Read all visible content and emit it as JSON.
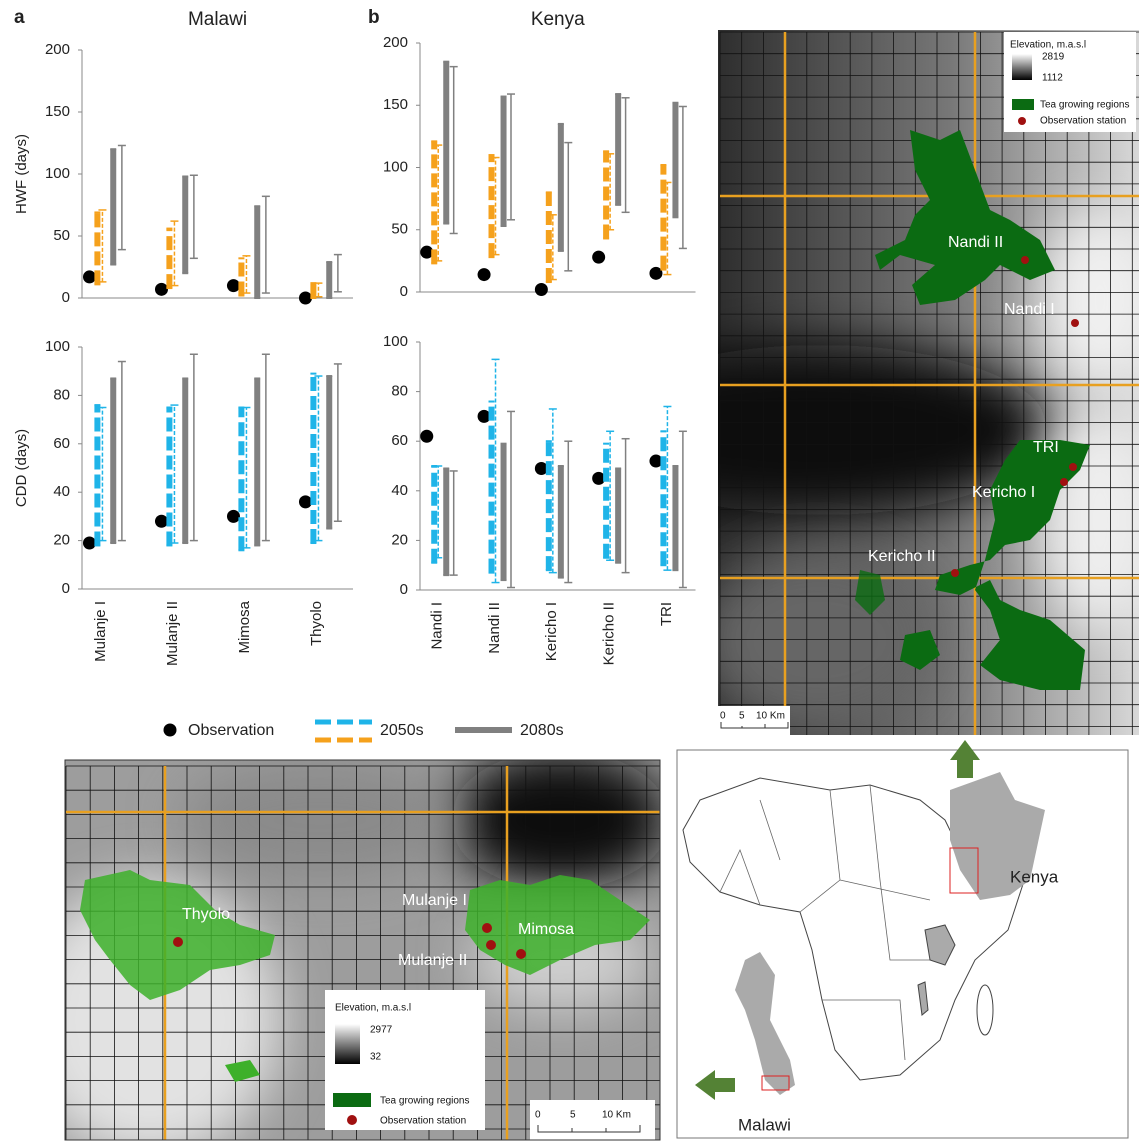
{
  "chart_data": [
    {
      "type": "range",
      "panel": "a",
      "title": "Malawi",
      "y_label": "HWF (days)",
      "ylim": [
        0,
        200
      ],
      "yticks": [
        0,
        50,
        100,
        150,
        200
      ],
      "series": [
        {
          "name": "Observation",
          "color": "#000000",
          "values": [
            17,
            7,
            10,
            0
          ]
        },
        {
          "name": "2050s",
          "color": "#f5a11c",
          "values": [
            [
              11,
              69
            ],
            [
              8,
              56
            ],
            [
              2,
              32
            ],
            [
              0,
              12
            ]
          ],
          "values_thin": [
            [
              13,
              71
            ],
            [
              10,
              62
            ],
            [
              4,
              34
            ],
            [
              1,
              12
            ]
          ]
        },
        {
          "name": "2080s",
          "color": "#808080",
          "values": [
            [
              27,
              120
            ],
            [
              20,
              98
            ],
            [
              0,
              74
            ],
            [
              0,
              29
            ]
          ],
          "values_thin": [
            [
              39,
              123
            ],
            [
              32,
              99
            ],
            [
              4,
              82
            ],
            [
              5,
              35
            ]
          ]
        }
      ]
    },
    {
      "type": "range",
      "panel": "b",
      "title": "Kenya",
      "ylim": [
        0,
        200
      ],
      "yticks": [
        0,
        50,
        100,
        150,
        200
      ],
      "series": [
        {
          "name": "Observation",
          "color": "#000000",
          "values": [
            32,
            14,
            2,
            28,
            15
          ]
        },
        {
          "name": "2050s",
          "color": "#f5a11c",
          "values": [
            [
              23,
              121
            ],
            [
              28,
              110
            ],
            [
              8,
              80
            ],
            [
              43,
              113
            ],
            [
              18,
              102
            ]
          ],
          "values_thin": [
            [
              25,
              118
            ],
            [
              30,
              108
            ],
            [
              10,
              62
            ],
            [
              50,
              111
            ],
            [
              14,
              88
            ]
          ]
        },
        {
          "name": "2080s",
          "color": "#808080",
          "values": [
            [
              55,
              185
            ],
            [
              53,
              157
            ],
            [
              33,
              135
            ],
            [
              70,
              159
            ],
            [
              60,
              152
            ]
          ],
          "values_thin": [
            [
              47,
              181
            ],
            [
              58,
              159
            ],
            [
              17,
              120
            ],
            [
              64,
              156
            ],
            [
              35,
              149
            ]
          ]
        }
      ]
    },
    {
      "type": "range",
      "y_label": "CDD (days)",
      "categories": [
        "Mulanje I",
        "Mulanje II",
        "Mimosa",
        "Thyolo"
      ],
      "ylim": [
        0,
        100
      ],
      "yticks": [
        0,
        20,
        40,
        60,
        80,
        100
      ],
      "series": [
        {
          "name": "Observation",
          "color": "#000000",
          "values": [
            19,
            28,
            30,
            36
          ]
        },
        {
          "name": "2050s",
          "color": "#1fb4e8",
          "values": [
            [
              18,
              76
            ],
            [
              18,
              75
            ],
            [
              16,
              75
            ],
            [
              19,
              89
            ]
          ],
          "values_thin": [
            [
              20,
              75
            ],
            [
              19,
              76
            ],
            [
              17,
              75
            ],
            [
              20,
              88
            ]
          ]
        },
        {
          "name": "2080s",
          "color": "#808080",
          "values": [
            [
              19,
              87
            ],
            [
              19,
              87
            ],
            [
              18,
              87
            ],
            [
              25,
              88
            ]
          ],
          "values_thin": [
            [
              20,
              94
            ],
            [
              20,
              97
            ],
            [
              20,
              97
            ],
            [
              28,
              93
            ]
          ]
        }
      ]
    },
    {
      "type": "range",
      "categories": [
        "Nandi I",
        "Nandi II",
        "Kericho I",
        "Kericho II",
        "TRI"
      ],
      "ylim": [
        0,
        100
      ],
      "yticks": [
        0,
        20,
        40,
        60,
        80,
        100
      ],
      "series": [
        {
          "name": "Observation",
          "color": "#000000",
          "values": [
            62,
            70,
            49,
            45,
            52
          ]
        },
        {
          "name": "2050s",
          "color": "#1fb4e8",
          "values": [
            [
              11,
              50
            ],
            [
              7,
              76
            ],
            [
              8,
              60
            ],
            [
              13,
              59
            ],
            [
              10,
              64
            ]
          ],
          "values_thin": [
            [
              13,
              50
            ],
            [
              3,
              93
            ],
            [
              7,
              73
            ],
            [
              12,
              64
            ],
            [
              8,
              74
            ]
          ]
        },
        {
          "name": "2080s",
          "color": "#808080",
          "values": [
            [
              6,
              49
            ],
            [
              4,
              59
            ],
            [
              5,
              50
            ],
            [
              11,
              49
            ],
            [
              8,
              50
            ]
          ],
          "values_thin": [
            [
              6,
              48
            ],
            [
              1,
              72
            ],
            [
              3,
              60
            ],
            [
              7,
              61
            ],
            [
              1,
              64
            ]
          ]
        }
      ]
    }
  ],
  "maps": {
    "kenya": {
      "legend_title": "Elevation, m.a.s.l",
      "legend_max": 2819,
      "legend_min": 1112,
      "legend_items": [
        "Tea growing regions",
        "Observation station"
      ],
      "stations": [
        "Nandi II",
        "Nandi I",
        "TRI",
        "Kericho I",
        "Kericho II"
      ],
      "scale": [
        0,
        5,
        {
          "value": 10,
          "label": "10 Km"
        }
      ]
    },
    "malawi": {
      "legend_title": "Elevation, m.a.s.l",
      "legend_max": 2977,
      "legend_min": 32,
      "legend_items": [
        "Tea growing regions",
        "Observation station"
      ],
      "stations": [
        "Thyolo",
        "Mulanje I",
        "Mimosa",
        "Mulanje II"
      ],
      "scale": [
        0,
        5,
        {
          "value": 10,
          "label": "10 Km"
        }
      ]
    },
    "africa": {
      "labels": [
        "Kenya",
        "Malawi"
      ]
    }
  }
}
